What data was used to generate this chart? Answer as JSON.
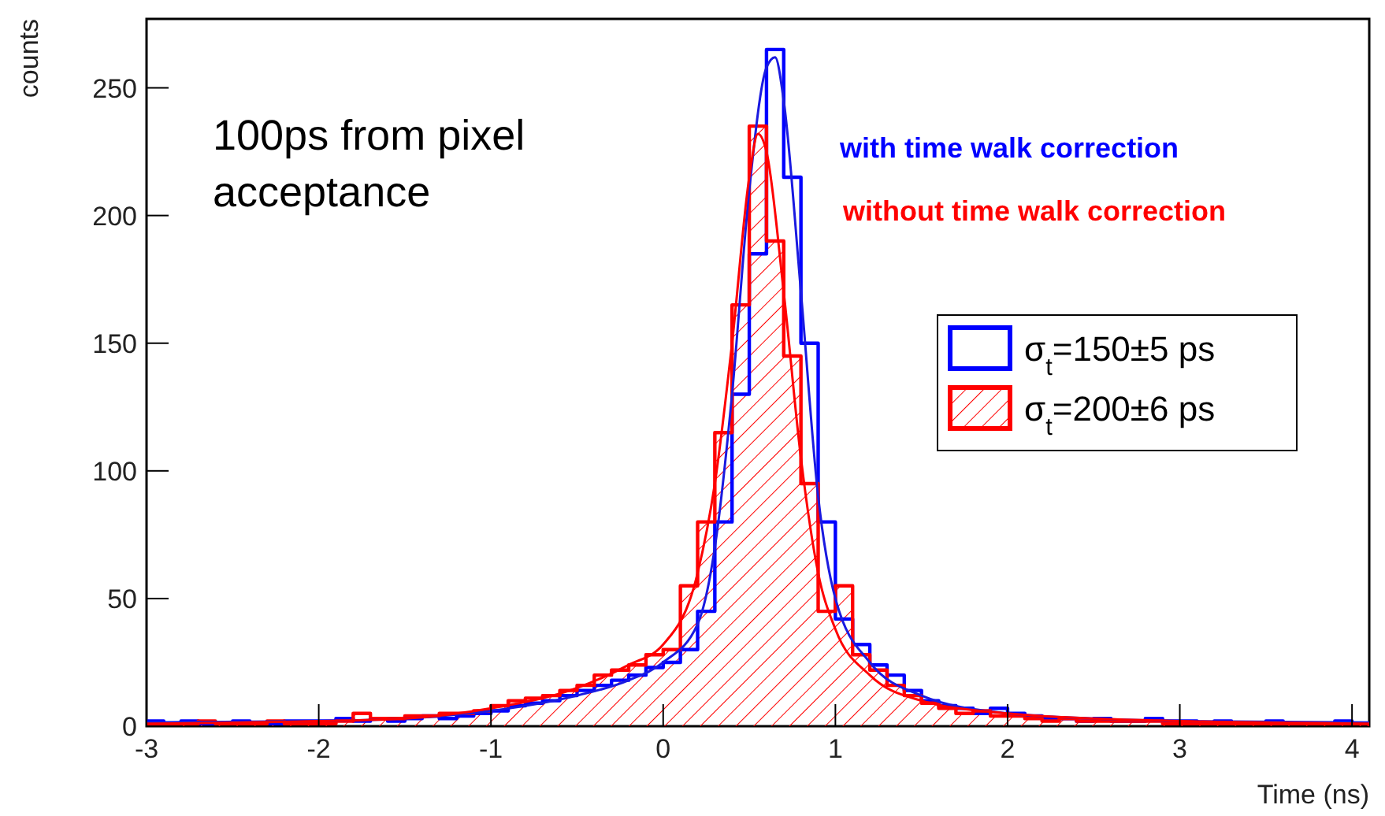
{
  "chart_data": {
    "type": "histogram",
    "xlabel": "Time (ns)",
    "ylabel": "counts",
    "annotations": [
      "100ps from pixel acceptance",
      "with time walk correction",
      "without time walk correction"
    ],
    "bins": [
      -3.0,
      -2.9,
      -2.8,
      -2.7,
      -2.6,
      -2.5,
      -2.4,
      -2.3,
      -2.2,
      -2.1,
      -2.0,
      -1.9,
      -1.8,
      -1.7,
      -1.6,
      -1.5,
      -1.4,
      -1.3,
      -1.2,
      -1.1,
      -1.0,
      -0.9,
      -0.8,
      -0.7,
      -0.6,
      -0.5,
      -0.4,
      -0.3,
      -0.2,
      -0.1,
      0.0,
      0.1,
      0.2,
      0.3,
      0.4,
      0.5,
      0.6,
      0.7,
      0.8,
      0.9,
      1.0,
      1.1,
      1.2,
      1.3,
      1.4,
      1.5,
      1.6,
      1.7,
      1.8,
      1.9,
      2.0,
      2.1,
      2.2,
      2.3,
      2.4,
      2.5,
      2.6,
      2.7,
      2.8,
      2.9,
      3.0,
      3.1,
      3.2,
      3.3,
      3.4,
      3.5,
      3.6,
      3.7,
      3.8,
      3.9,
      4.0,
      4.1
    ],
    "series": [
      {
        "name": "σ$_{t}$=150±5 ps",
        "color": "#0000ff",
        "values": [
          2,
          1,
          2,
          1,
          1,
          2,
          1,
          1,
          2,
          2,
          2,
          3,
          2,
          3,
          2,
          3,
          4,
          3,
          4,
          5,
          6,
          8,
          9,
          10,
          12,
          14,
          16,
          18,
          20,
          23,
          25,
          30,
          45,
          80,
          130,
          185,
          265,
          215,
          150,
          80,
          42,
          32,
          24,
          20,
          14,
          10,
          8,
          7,
          5,
          7,
          5,
          4,
          3,
          3,
          2,
          3,
          2,
          2,
          3,
          2,
          2,
          1,
          2,
          1,
          1,
          2,
          1,
          1,
          1,
          2,
          1
        ]
      },
      {
        "name": "σ$_{t}$=200±6 ps",
        "color": "#ff0000",
        "values": [
          1,
          1,
          1,
          2,
          1,
          1,
          1,
          2,
          1,
          1,
          1,
          2,
          5,
          3,
          3,
          4,
          4,
          5,
          5,
          6,
          8,
          10,
          11,
          12,
          14,
          16,
          20,
          22,
          24,
          28,
          30,
          55,
          80,
          115,
          165,
          235,
          190,
          145,
          95,
          45,
          55,
          28,
          22,
          16,
          12,
          9,
          7,
          5,
          6,
          4,
          4,
          3,
          2,
          3,
          2,
          2,
          2,
          2,
          2,
          1,
          1,
          1,
          1,
          1,
          1,
          1,
          1,
          1,
          1,
          1,
          1
        ]
      },
      {
        "type": "line",
        "color": "#1a1ae0",
        "x": [
          -3,
          -2,
          -1.5,
          -1,
          -0.5,
          -0.2,
          0,
          0.2,
          0.3,
          0.4,
          0.5,
          0.6,
          0.65,
          0.7,
          0.8,
          0.9,
          1.0,
          1.2,
          1.5,
          2,
          2.5,
          3,
          4.1
        ],
        "values": [
          1.5,
          2,
          3,
          6,
          12,
          18,
          25,
          40,
          70,
          130,
          210,
          258,
          262,
          245,
          170,
          90,
          50,
          25,
          12,
          5,
          3,
          2,
          1.5
        ]
      },
      {
        "type": "line",
        "color": "#ff0000",
        "x": [
          -3,
          -2,
          -1.5,
          -1,
          -0.5,
          -0.2,
          0,
          0.2,
          0.3,
          0.4,
          0.5,
          0.55,
          0.6,
          0.7,
          0.8,
          0.9,
          1.0,
          1.2,
          1.5,
          2,
          2.5,
          3,
          4.1
        ],
        "values": [
          1,
          2,
          3,
          7,
          15,
          24,
          32,
          60,
          95,
          150,
          215,
          232,
          225,
          170,
          105,
          60,
          38,
          20,
          10,
          5,
          3,
          2,
          1
        ]
      }
    ],
    "xlim": [
      -3,
      4.1
    ],
    "xticks": [
      -3,
      -2,
      -1,
      0,
      1,
      2,
      3,
      4
    ],
    "ylim": [
      0,
      277
    ],
    "yticks": [
      0,
      50,
      100,
      150,
      200,
      250
    ],
    "grid": false,
    "legend": "right"
  }
}
